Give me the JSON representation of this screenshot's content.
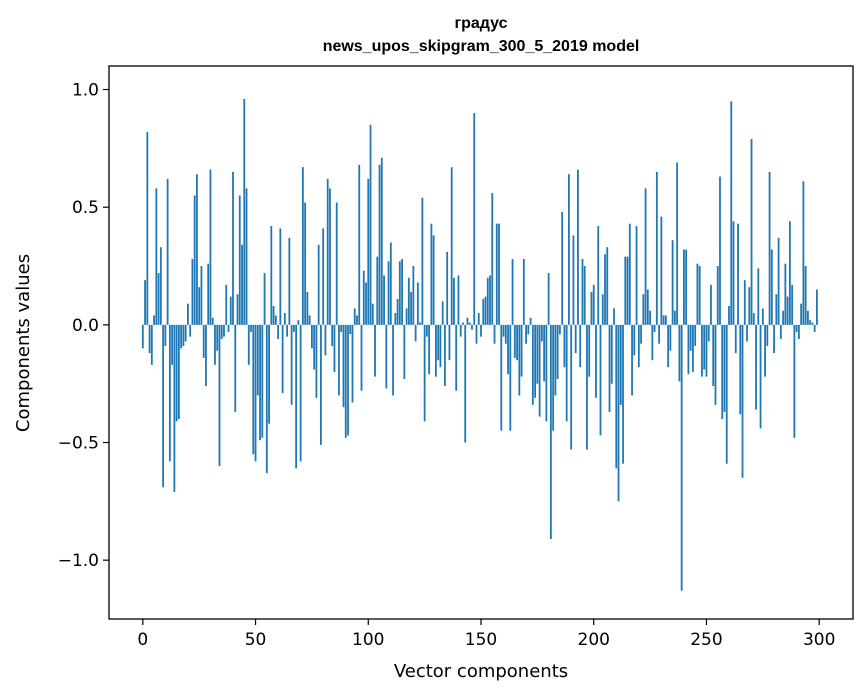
{
  "chart_data": {
    "type": "bar",
    "title": "градус",
    "subtitle": "news_upos_skipgram_300_5_2019 model",
    "xlabel": "Vector components",
    "ylabel": "Components values",
    "xlim": [
      -15,
      315
    ],
    "ylim": [
      -1.25,
      1.1
    ],
    "xticks": [
      0,
      50,
      100,
      150,
      200,
      250,
      300
    ],
    "yticks": [
      -1.0,
      -0.5,
      0.0,
      0.5,
      1.0
    ],
    "xtick_labels": [
      "0",
      "50",
      "100",
      "150",
      "200",
      "250",
      "300"
    ],
    "ytick_labels": [
      "−1.0",
      "−0.5",
      "0.0",
      "0.5",
      "1.0"
    ],
    "bar_color": "#1f77b4",
    "grid": false,
    "legend": "none",
    "series": [
      {
        "values": [
          -0.1,
          0.19,
          0.82,
          -0.12,
          -0.17,
          0.04,
          0.58,
          0.22,
          0.33,
          -0.69,
          -0.09,
          0.62,
          -0.58,
          -0.17,
          -0.71,
          -0.41,
          -0.4,
          -0.1,
          -0.09,
          -0.07,
          0.09,
          -0.05,
          0.28,
          0.55,
          0.64,
          0.16,
          0.25,
          -0.14,
          -0.26,
          0.26,
          0.66,
          0.03,
          -0.17,
          -0.11,
          -0.6,
          -0.06,
          -0.05,
          0.17,
          -0.03,
          0.12,
          0.65,
          -0.37,
          0.13,
          0.55,
          0.34,
          0.96,
          0.58,
          -0.17,
          -0.03,
          -0.55,
          -0.58,
          -0.3,
          -0.49,
          -0.48,
          0.22,
          -0.63,
          -0.42,
          0.42,
          0.08,
          0.04,
          -0.06,
          0.41,
          -0.29,
          0.05,
          -0.05,
          0.37,
          -0.34,
          -0.03,
          -0.61,
          0.02,
          -0.58,
          0.67,
          0.52,
          0.14,
          0.04,
          -0.1,
          -0.19,
          -0.31,
          0.34,
          -0.51,
          0.41,
          -0.13,
          0.62,
          0.58,
          -0.09,
          -0.2,
          0.52,
          -0.3,
          -0.03,
          -0.35,
          -0.48,
          -0.47,
          -0.04,
          -0.33,
          0.07,
          0.04,
          0.68,
          -0.28,
          0.23,
          0.18,
          0.62,
          0.85,
          0.09,
          -0.22,
          0.29,
          0.68,
          0.71,
          0.21,
          -0.27,
          0.27,
          0.35,
          -0.3,
          0.05,
          0.11,
          0.27,
          0.28,
          -0.23,
          0.07,
          0.2,
          0.14,
          0.25,
          -0.07,
          0.18,
          0.01,
          0.54,
          -0.41,
          -0.05,
          -0.21,
          0.43,
          0.38,
          -0.22,
          -0.15,
          -0.18,
          0.1,
          -0.26,
          0.31,
          -0.15,
          0.67,
          0.2,
          -0.28,
          0.21,
          -0.05,
          0.01,
          -0.5,
          0.03,
          0.01,
          -0.02,
          0.9,
          -0.08,
          0.05,
          -0.05,
          0.11,
          0.12,
          0.2,
          0.21,
          0.56,
          -0.08,
          0.43,
          0.43,
          -0.45,
          -0.05,
          -0.08,
          -0.21,
          -0.45,
          0.28,
          -0.14,
          -0.15,
          -0.3,
          -0.22,
          0.28,
          -0.08,
          -0.04,
          0.03,
          -0.34,
          -0.31,
          -0.25,
          -0.39,
          -0.07,
          -0.24,
          -0.41,
          0.22,
          -0.91,
          -0.45,
          -0.3,
          -0.23,
          -0.04,
          0.48,
          -0.18,
          -0.41,
          0.64,
          -0.53,
          0.38,
          -0.12,
          0.66,
          -0.18,
          0.28,
          0.25,
          -0.53,
          -0.22,
          0.14,
          0.17,
          -0.31,
          0.42,
          -0.47,
          0.13,
          0.3,
          0.33,
          -0.37,
          -0.25,
          0.07,
          -0.61,
          -0.75,
          -0.34,
          -0.59,
          0.29,
          0.29,
          0.43,
          -0.3,
          -0.13,
          0.42,
          -0.18,
          -0.08,
          0.13,
          0.58,
          0.15,
          0.06,
          -0.15,
          -0.03,
          0.65,
          -0.08,
          0.46,
          0.04,
          0.04,
          -0.18,
          -0.11,
          0.36,
          0.06,
          0.69,
          -0.24,
          -1.13,
          0.32,
          0.32,
          -0.21,
          -0.11,
          -0.2,
          -0.09,
          0.26,
          0.25,
          -0.22,
          -0.19,
          -0.22,
          -0.07,
          0.17,
          -0.26,
          -0.34,
          0.25,
          0.63,
          -0.4,
          -0.37,
          -0.59,
          0.08,
          0.95,
          0.44,
          -0.12,
          0.43,
          -0.38,
          -0.65,
          0.19,
          -0.07,
          0.16,
          0.79,
          0.05,
          -0.36,
          0.24,
          -0.44,
          0.07,
          -0.22,
          -0.09,
          0.65,
          0.32,
          -0.12,
          0.13,
          0.37,
          -0.06,
          0.06,
          0.26,
          0.12,
          0.44,
          0.17,
          -0.48,
          -0.03,
          -0.06,
          0.09,
          0.61,
          0.25,
          0.06,
          0.02,
          0.01,
          -0.03,
          0.15
        ]
      }
    ]
  }
}
